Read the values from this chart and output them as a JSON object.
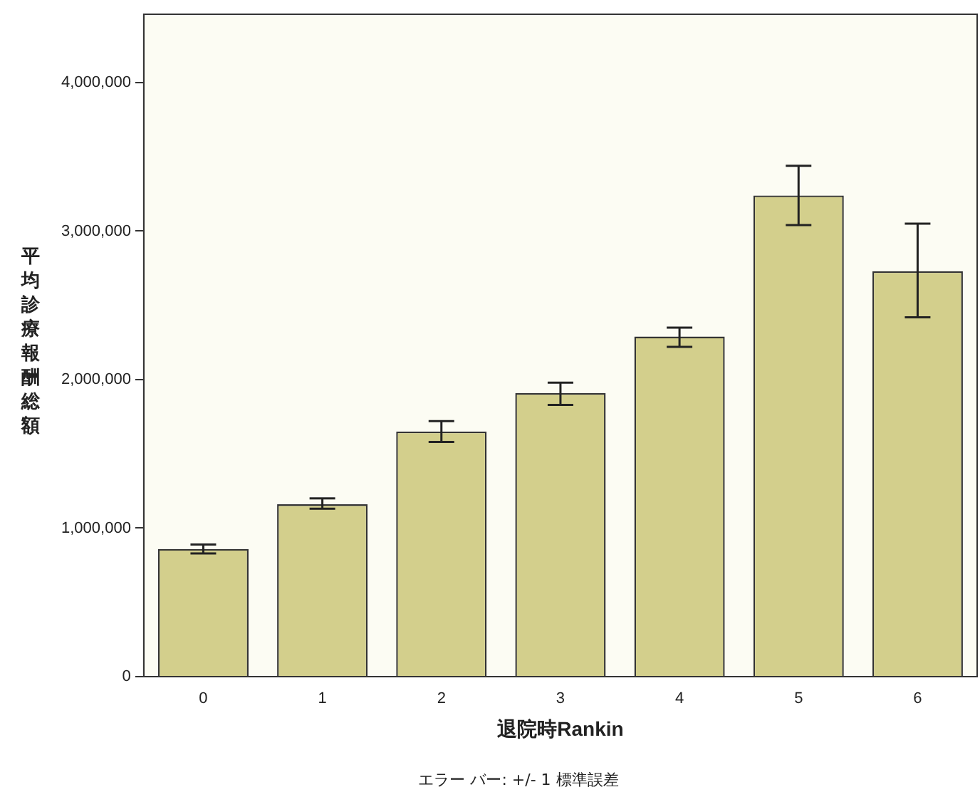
{
  "chart_data": {
    "type": "bar",
    "ylabel": "平均診療報酬総額",
    "xlabel": "退院時Rankin",
    "annotations": [
      "エラー バー: +/- 1 標準誤差"
    ],
    "categories": [
      "0",
      "1",
      "2",
      "3",
      "4",
      "5",
      "6"
    ],
    "values": [
      860000,
      1160000,
      1650000,
      1910000,
      2290000,
      3240000,
      2730000
    ],
    "errors": [
      [
        830000,
        890000
      ],
      [
        1130000,
        1200000
      ],
      [
        1580000,
        1720000
      ],
      [
        1830000,
        1980000
      ],
      [
        2220000,
        2350000
      ],
      [
        3040000,
        3440000
      ],
      [
        2420000,
        3050000
      ]
    ],
    "color": "#d3cf8c",
    "ylim": [
      0,
      4460000
    ],
    "yticks": [
      0,
      {
        "value": 1000000,
        "label": "1,000,000"
      },
      {
        "value": 2000000,
        "label": "2,000,000"
      },
      {
        "value": 3000000,
        "label": "3,000,000"
      },
      {
        "value": 4000000,
        "label": "4,000,000"
      }
    ],
    "grid": false,
    "legend": false
  }
}
